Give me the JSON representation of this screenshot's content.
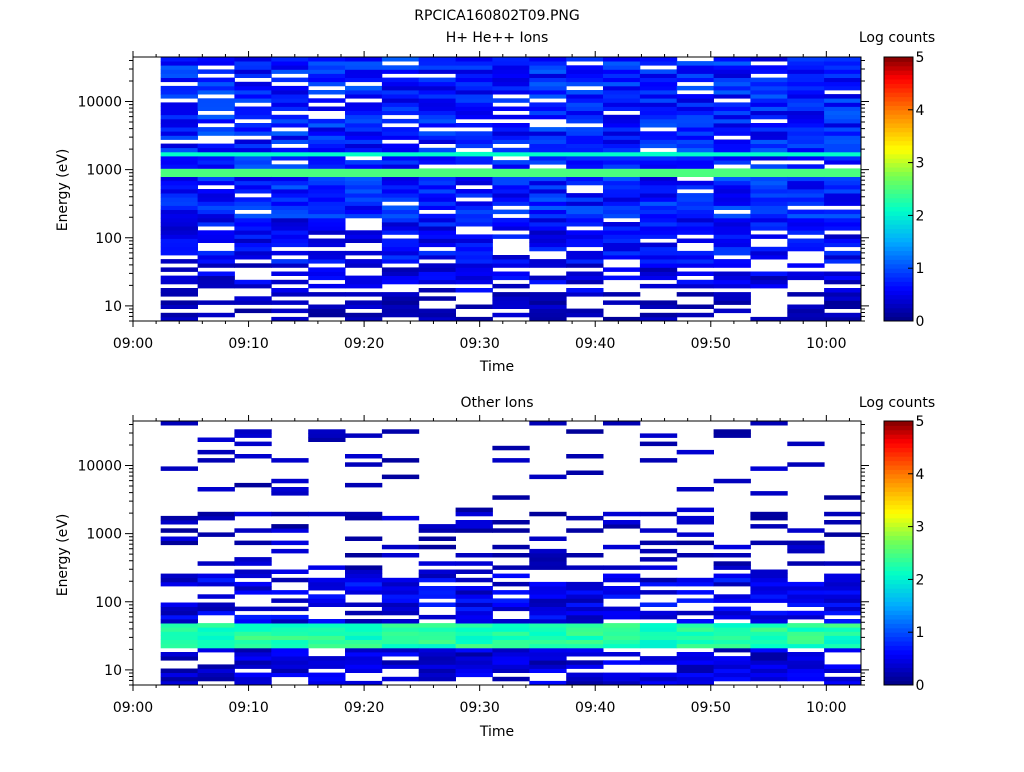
{
  "figure": {
    "title": "RPCICA160802T09.PNG",
    "colorbar_label": "Log counts",
    "colorbar_ticks": [
      "0",
      "1",
      "2",
      "3",
      "4",
      "5"
    ],
    "colorbar_range": [
      0,
      5
    ]
  },
  "chart_data": [
    {
      "type": "heatmap",
      "title": "H+ He++ Ions",
      "xlabel": "Time",
      "ylabel": "Energy (eV)",
      "x_ticks": [
        "09:00",
        "09:10",
        "09:20",
        "09:30",
        "09:40",
        "09:50",
        "10:00"
      ],
      "x_range_minutes": [
        0,
        63
      ],
      "y_scale": "log",
      "y_ticks": [
        "10",
        "100",
        "1000",
        "10000"
      ],
      "y_range": [
        6,
        45000
      ],
      "colorscale": "rainbow (0 dark blue to 5 dark red), white = no counts",
      "time_bins_start": [
        "09:02",
        "09:05",
        "09:08",
        "09:12",
        "09:15",
        "09:18",
        "09:21",
        "09:24",
        "09:27",
        "09:31",
        "09:34",
        "09:37",
        "09:40",
        "09:44",
        "09:47",
        "09:50",
        "09:53",
        "09:57",
        "10:00"
      ],
      "features": [
        {
          "description": "steady enhanced band",
          "energy_eV": 900,
          "log_counts": 2.5
        },
        {
          "description": "secondary band",
          "energy_eV": 1800,
          "log_counts": 2.1
        },
        {
          "description": "background across 10 eV - 40 keV",
          "log_counts_range": [
            0,
            1
          ]
        }
      ]
    },
    {
      "type": "heatmap",
      "title": "Other Ions",
      "xlabel": "Time",
      "ylabel": "Energy (eV)",
      "x_ticks": [
        "09:00",
        "09:10",
        "09:20",
        "09:30",
        "09:40",
        "09:50",
        "10:00"
      ],
      "x_range_minutes": [
        0,
        63
      ],
      "y_scale": "log",
      "y_ticks": [
        "10",
        "100",
        "1000",
        "10000"
      ],
      "y_range": [
        6,
        45000
      ],
      "colorscale": "rainbow (0 dark blue to 5 dark red), white = no counts",
      "time_bins_start": [
        "09:02",
        "09:05",
        "09:08",
        "09:12",
        "09:15",
        "09:18",
        "09:21",
        "09:24",
        "09:27",
        "09:31",
        "09:34",
        "09:37",
        "09:40",
        "09:44",
        "09:47",
        "09:50",
        "09:53",
        "09:57",
        "10:00"
      ],
      "features": [
        {
          "description": "strong low-energy band",
          "energy_eV": 30,
          "log_counts": 2.3
        },
        {
          "description": "thin line",
          "energy_eV": 900,
          "log_counts": 1.0
        },
        {
          "description": "sparse counts",
          "energy_range_eV": [
            100,
            40000
          ],
          "log_counts_range": [
            0,
            0.5
          ]
        }
      ]
    }
  ]
}
